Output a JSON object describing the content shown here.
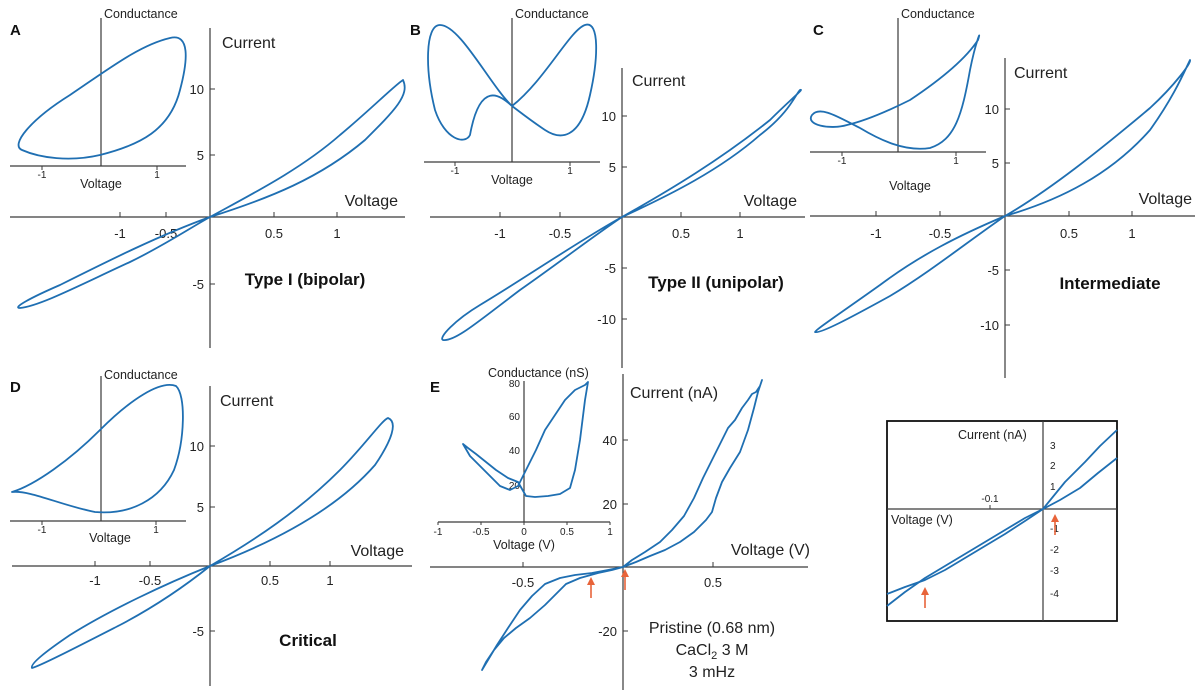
{
  "colors": {
    "curve": "#1f6fb2",
    "axis": "#3a3a3a",
    "arrow": "#e8643a"
  },
  "chart_data": [
    {
      "letter": "A",
      "title": "Type I (bipolar)",
      "type": "line",
      "xlabel": "Voltage",
      "ylabel": "Current",
      "xticks": [
        "-1",
        "-0.5",
        "0.5",
        "1"
      ],
      "yticks": [
        "10",
        "5",
        "-5"
      ],
      "series": [
        {
          "x": [
            0,
            0.5,
            1.0,
            1.45,
            1.1,
            0.5,
            0,
            -0.5,
            -1.0,
            -1.45,
            -1.1,
            -0.5,
            0
          ],
          "y": [
            0,
            3.2,
            6.8,
            10.6,
            8.2,
            4.2,
            0,
            -3.2,
            -6.4,
            -7.1,
            -5.6,
            -2.9,
            0
          ]
        }
      ],
      "inset": {
        "xlabel": "Voltage",
        "ylabel": "Conductance",
        "xticks": [
          "-1",
          "1"
        ],
        "series": [
          {
            "x": [
              -1.45,
              -1.2,
              -0.5,
              0.5,
              1.1,
              1.45,
              1.35,
              1.0,
              0.3,
              -0.5,
              -1.2,
              -1.45
            ],
            "y": [
              0.1,
              0.05,
              0.15,
              0.35,
              0.55,
              0.95,
              1.0,
              0.95,
              0.75,
              0.55,
              0.3,
              0.1
            ]
          }
        ]
      }
    },
    {
      "letter": "B",
      "title": "Type II (unipolar)",
      "type": "line",
      "xlabel": "Voltage",
      "ylabel": "Current",
      "xticks": [
        "-1",
        "-0.5",
        "0.5",
        "1"
      ],
      "yticks": [
        "10",
        "5",
        "-5",
        "-10"
      ],
      "series": [
        {
          "x": [
            0,
            0.5,
            1.0,
            1.45,
            1.2,
            0.6,
            0,
            -0.6,
            -1.2,
            -1.45,
            -1.1,
            -0.5,
            0
          ],
          "y": [
            0,
            3.6,
            7.4,
            12.6,
            9.5,
            4.8,
            0,
            -5.0,
            -9.8,
            -12.6,
            -8.0,
            -4.0,
            0
          ]
        }
      ],
      "inset": {
        "xlabel": "Voltage",
        "ylabel": "Conductance",
        "xticks": [
          "-1",
          "1"
        ],
        "series": [
          {
            "x": [
              0,
              0.5,
              1.0,
              1.35,
              1.4,
              1.2,
              0.6,
              0,
              -0.6,
              -1.2,
              -1.4,
              -1.35,
              -1.0,
              -0.5,
              0
            ],
            "y": [
              0.45,
              0.62,
              0.85,
              1.0,
              0.7,
              0.25,
              0.3,
              0.45,
              0.62,
              0.85,
              1.0,
              0.7,
              0.25,
              0.3,
              0.45
            ]
          }
        ]
      }
    },
    {
      "letter": "C",
      "title": "Intermediate",
      "type": "line",
      "xlabel": "Voltage",
      "ylabel": "Current",
      "xticks": [
        "-1",
        "-0.5",
        "0.5",
        "1"
      ],
      "yticks": [
        "10",
        "5",
        "-5",
        "-10"
      ],
      "series": [
        {
          "x": [
            0,
            0.5,
            1.0,
            1.45,
            1.2,
            0.6,
            0,
            -0.6,
            -1.2,
            -1.45,
            -1.1,
            -0.5,
            0
          ],
          "y": [
            0,
            3.5,
            7.6,
            14.3,
            10.0,
            4.6,
            0,
            -5.1,
            -9.6,
            -11.0,
            -8.0,
            -4.4,
            0
          ]
        }
      ],
      "inset": {
        "xlabel": "Voltage",
        "ylabel": "Conductance",
        "xticks": [
          "-1",
          "1"
        ],
        "series": [
          {
            "x": [
              -1.45,
              -1.25,
              -1.0,
              -0.5,
              0,
              0.5,
              1.0,
              1.3,
              1.45,
              1.3,
              1.0,
              0.5,
              0,
              -0.5,
              -1.0,
              -1.3,
              -1.45
            ],
            "y": [
              0.38,
              0.42,
              0.35,
              0.2,
              0.08,
              0.05,
              0.15,
              0.45,
              0.95,
              0.9,
              0.75,
              0.55,
              0.4,
              0.3,
              0.28,
              0.32,
              0.38
            ]
          }
        ]
      }
    },
    {
      "letter": "D",
      "title": "Critical",
      "type": "line",
      "xlabel": "Voltage",
      "ylabel": "Current",
      "xticks": [
        "-1",
        "-0.5",
        "0.5",
        "1"
      ],
      "yticks": [
        "10",
        "5",
        "-5"
      ],
      "series": [
        {
          "x": [
            0,
            0.5,
            1.0,
            1.45,
            1.2,
            0.6,
            0,
            -0.6,
            -1.2,
            -1.45,
            -1.0,
            -0.5,
            0
          ],
          "y": [
            0,
            3.8,
            7.8,
            12.3,
            9.5,
            4.6,
            0,
            -4.7,
            -9.0,
            -11.2,
            -7.4,
            -3.7,
            0
          ]
        }
      ],
      "inset": {
        "xlabel": "Voltage",
        "ylabel": "Conductance",
        "xticks": [
          "-1",
          "1"
        ],
        "series": [
          {
            "x": [
              -1.45,
              -1.0,
              -0.5,
              0,
              0.5,
              1.0,
              1.35,
              1.45,
              1.3,
              1.0,
              0.5,
              0,
              -0.5,
              -1.0,
              -1.45
            ],
            "y": [
              0.3,
              0.22,
              0.1,
              0.05,
              0.12,
              0.35,
              0.7,
              0.95,
              0.95,
              0.9,
              0.75,
              0.6,
              0.45,
              0.35,
              0.3
            ]
          }
        ]
      }
    },
    {
      "letter": "E",
      "type": "line",
      "xlabel": "Voltage (V)",
      "ylabel": "Current (nA)",
      "xticks": [
        "-0.5",
        "0.5"
      ],
      "yticks": [
        "40",
        "20",
        "-20"
      ],
      "note": [
        "Pristine (0.68 nm)",
        "CaCl",
        "2",
        " 3 M",
        "3 mHz"
      ],
      "series": [
        {
          "x": [
            0,
            0.1,
            0.25,
            0.4,
            0.55,
            0.7,
            0.62,
            0.5,
            0.35,
            0.2,
            0.08,
            0,
            -0.15,
            -0.3,
            -0.5,
            -0.65,
            -0.75,
            -0.65,
            -0.5,
            -0.3,
            -0.15,
            0
          ],
          "y": [
            0,
            2,
            6,
            12,
            20,
            58,
            40,
            18,
            8,
            3.5,
            1,
            0,
            -1.5,
            -2.5,
            -3.5,
            -5,
            -32,
            -22,
            -12,
            -6,
            -3,
            0
          ]
        }
      ],
      "inset": {
        "xlabel": "Voltage (V)",
        "ylabel": "Conductance (nS)",
        "xticks": [
          "-1",
          "-0.5",
          "0",
          "0.5",
          "1"
        ],
        "yticks": [
          "20",
          "40",
          "60",
          "80"
        ],
        "xlim": [
          -1,
          1
        ],
        "ylim": [
          0,
          80
        ],
        "series": [
          {
            "x": [
              -0.75,
              -0.5,
              -0.3,
              -0.1,
              0,
              0.2,
              0.4,
              0.55,
              0.65,
              0.75,
              0.65,
              0.5,
              0.3,
              0.1,
              0,
              -0.1,
              -0.3,
              -0.5,
              -0.75
            ],
            "y": [
              45,
              30,
              20,
              18,
              28,
              40,
              55,
              70,
              80,
              78,
              20,
              15,
              12,
              10,
              12,
              22,
              30,
              38,
              45
            ]
          }
        ]
      }
    },
    {
      "type": "line",
      "xlabel": "Voltage (V)",
      "ylabel": "Current (nA)",
      "xticks": [
        "-0.1"
      ],
      "yticks": [
        "3",
        "2",
        "1",
        "-1",
        "-2",
        "-3",
        "-4"
      ],
      "xlim": [
        -0.2,
        0.1
      ],
      "ylim": [
        -5,
        4
      ],
      "series": [
        {
          "x": [
            -0.2,
            -0.15,
            -0.1,
            -0.05,
            0,
            0.05,
            0.1
          ],
          "y": [
            -4.6,
            -3.5,
            -2.6,
            -1.3,
            0,
            1.6,
            3.9
          ]
        },
        {
          "x": [
            -0.2,
            -0.15,
            -0.1,
            -0.05,
            0,
            0.05,
            0.1
          ],
          "y": [
            -4.2,
            -3.0,
            -2.0,
            -1.0,
            0,
            0.8,
            1.8
          ]
        }
      ]
    }
  ]
}
